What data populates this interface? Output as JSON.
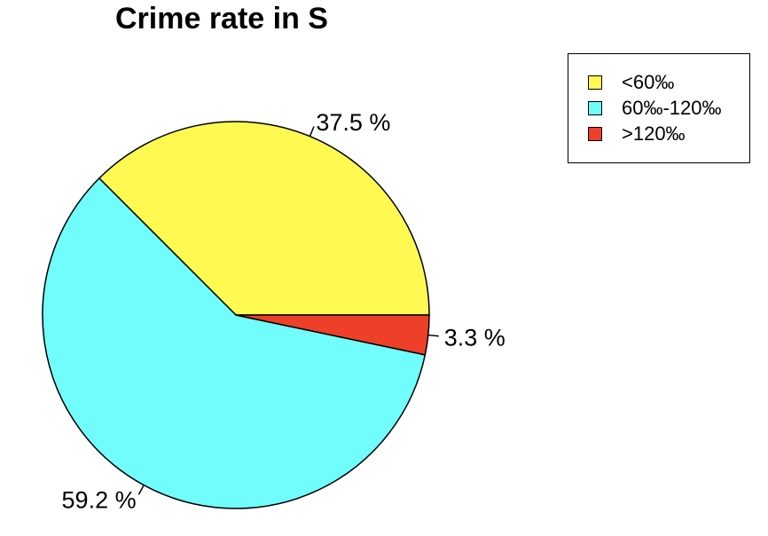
{
  "chart_data": {
    "type": "pie",
    "title": "Crime rate in S",
    "slices": [
      {
        "label": "<60‰",
        "value": 37.5,
        "value_label": "37.5 %",
        "color": "#fff952"
      },
      {
        "label": "60‰-120‰",
        "value": 59.2,
        "value_label": "59.2 %",
        "color": "#70fdfc"
      },
      {
        "label": ">120‰",
        "value": 3.3,
        "value_label": "3.3 %",
        "color": "#ee4028"
      }
    ],
    "legend_position": "top-right"
  }
}
